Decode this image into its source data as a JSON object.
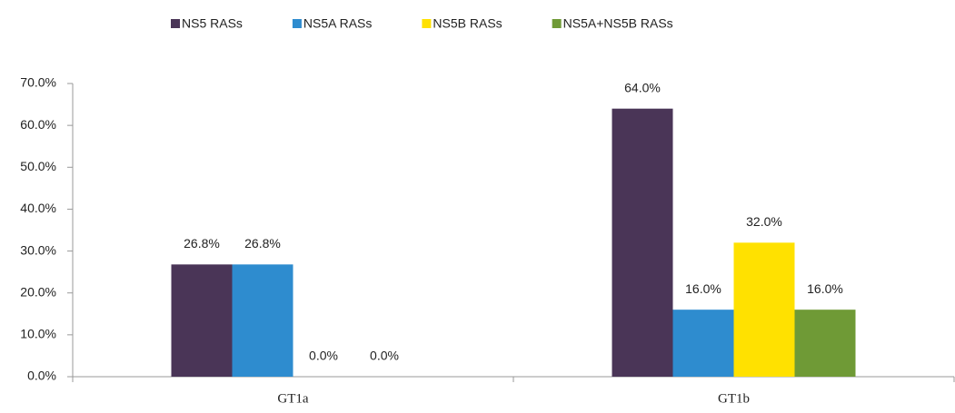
{
  "chart_data": {
    "type": "bar",
    "categories": [
      "GT1a",
      "GT1b"
    ],
    "series": [
      {
        "name": "NS5 RASs",
        "color": "#4a3557",
        "values": [
          26.8,
          64.0
        ],
        "value_labels": [
          "26.8%",
          "64.0%"
        ]
      },
      {
        "name": "NS5A RASs",
        "color": "#2e8ccf",
        "values": [
          26.8,
          16.0
        ],
        "value_labels": [
          "26.8%",
          "16.0%"
        ]
      },
      {
        "name": "NS5B RASs",
        "color": "#ffe100",
        "values": [
          0.0,
          32.0
        ],
        "value_labels": [
          "0.0%",
          "32.0%"
        ]
      },
      {
        "name": "NS5A+NS5B RASs",
        "color": "#6f9a36",
        "values": [
          0.0,
          16.0
        ],
        "value_labels": [
          "0.0%",
          "16.0%"
        ]
      }
    ],
    "ylim": [
      0,
      70
    ],
    "yticks": [
      {
        "value": 0,
        "label": "0.0%"
      },
      {
        "value": 10,
        "label": "10.0%"
      },
      {
        "value": 20,
        "label": "20.0%"
      },
      {
        "value": 30,
        "label": "30.0%"
      },
      {
        "value": 40,
        "label": "40.0%"
      },
      {
        "value": 50,
        "label": "50.0%"
      },
      {
        "value": 60,
        "label": "60.0%"
      },
      {
        "value": 70,
        "label": "70.0%"
      }
    ],
    "legend": "top"
  }
}
